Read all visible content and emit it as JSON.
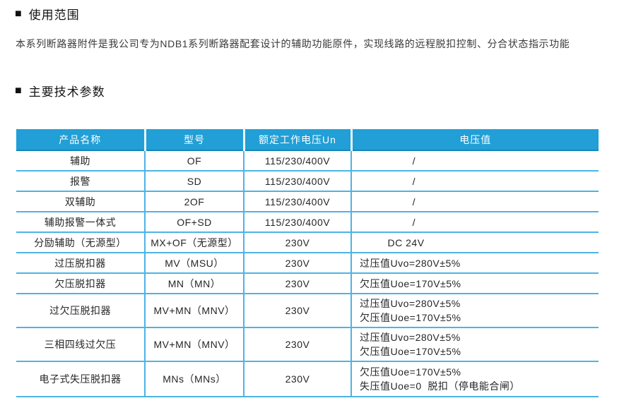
{
  "sections": [
    {
      "marker": "■",
      "title": "使用范围"
    },
    {
      "marker": "■",
      "title": "主要技术参数"
    }
  ],
  "intro_text": "本系列断路器附件是我公司专为NDB1系列断路器配套设计的辅助功能原件，实现线路的远程脱扣控制、分合状态指示功能",
  "colors": {
    "table_header_bg": "#219fd6",
    "table_grid": "#4db4e4",
    "table_header_text": "#ffffff",
    "body_text": "#262626"
  },
  "table": {
    "columns": [
      "产品名称",
      "型号",
      "额定工作电压Un",
      "电压值"
    ],
    "rows": [
      {
        "cells": [
          "辅助",
          "OF",
          "115/230/400V",
          "                 /"
        ]
      },
      {
        "cells": [
          "报警",
          "SD",
          "115/230/400V",
          "                 /"
        ]
      },
      {
        "cells": [
          "双辅助",
          "2OF",
          "115/230/400V",
          "                 /"
        ]
      },
      {
        "cells": [
          "辅助报警一体式",
          "OF+SD",
          "115/230/400V",
          "                 /"
        ]
      },
      {
        "cells": [
          "分励辅助（无源型）",
          "MX+OF（无源型）",
          "230V",
          "         DC 24V"
        ]
      },
      {
        "cells": [
          "过压脱扣器",
          "MV（MSU）",
          "230V",
          "过压值Uvo=280V±5%"
        ]
      },
      {
        "cells": [
          "欠压脱扣器",
          "MN（MN）",
          "230V",
          "欠压值Uoe=170V±5%"
        ]
      },
      {
        "cells": [
          "过欠压脱扣器",
          "MV+MN（MNV）",
          "230V",
          "过压值Uvo=280V±5%\n欠压值Uoe=170V±5%"
        ]
      },
      {
        "cells": [
          "三相四线过欠压",
          "MV+MN（MNV）",
          "230V",
          "过压值Uvo=280V±5%\n欠压值Uoe=170V±5%"
        ]
      },
      {
        "cells": [
          "电子式失压脱扣器",
          "MNs（MNs）",
          "230V",
          "欠压值Uoe=170V±5%\n失压值Uoe=0  脱扣（停电能合闸）"
        ]
      }
    ]
  }
}
